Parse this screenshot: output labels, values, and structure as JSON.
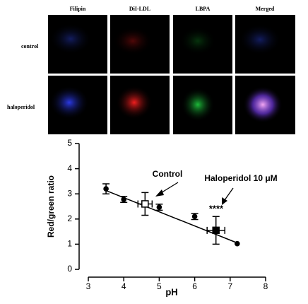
{
  "image_panel": {
    "columns": [
      "Filipin",
      "DiI-LDL",
      "LBPA",
      "Merged"
    ],
    "rows": [
      "control",
      "haloperidol"
    ]
  },
  "chart_data": {
    "type": "scatter",
    "x_label": "pH",
    "y_label": "Red/green ratio",
    "x": [
      3.5,
      4.0,
      4.6,
      5.0,
      6.0,
      6.6,
      7.2
    ],
    "y": [
      3.2,
      2.78,
      2.6,
      2.47,
      2.1,
      1.55,
      1.02
    ],
    "y_err": [
      0.2,
      0.12,
      0.45,
      0.12,
      0.12,
      0.55,
      null
    ],
    "x_err": [
      null,
      null,
      0.2,
      null,
      null,
      0.25,
      null
    ],
    "markers": [
      "circle",
      "circle",
      "open-square",
      "circle",
      "circle",
      "square",
      "circle"
    ],
    "color": "#000000",
    "fit_line": {
      "x": [
        3.5,
        7.2
      ],
      "y": [
        3.13,
        1.05
      ]
    },
    "annotations": [
      "Control",
      "Haloperidol 10 μM",
      "****"
    ],
    "xlim": [
      3,
      8
    ],
    "xticks": [
      3,
      4,
      5,
      6,
      7,
      8
    ],
    "ylim": [
      0,
      5
    ],
    "yticks": [
      0,
      1,
      2,
      3,
      4,
      5
    ],
    "grid": false
  }
}
